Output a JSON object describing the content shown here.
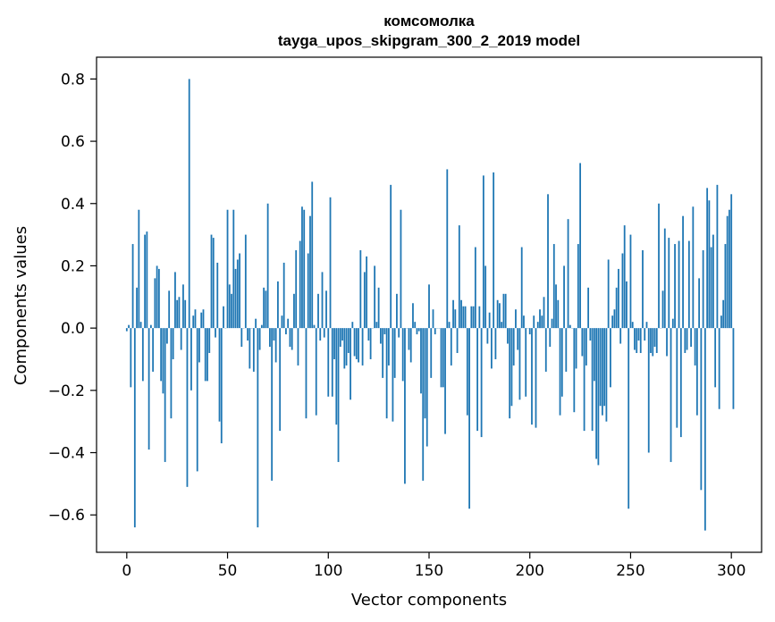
{
  "chart_data": {
    "type": "bar",
    "title": "комсомолка",
    "subtitle": "tayga_upos_skipgram_300_2_2019 model",
    "xlabel": "Vector components",
    "ylabel": "Components values",
    "xlim": [
      -15,
      315
    ],
    "ylim": [
      -0.72,
      0.87
    ],
    "xticks": [
      0,
      50,
      100,
      150,
      200,
      250,
      300
    ],
    "xtick_labels": [
      "0",
      "50",
      "100",
      "150",
      "200",
      "250",
      "300"
    ],
    "yticks": [
      -0.6,
      -0.4,
      -0.2,
      0.0,
      0.2,
      0.4,
      0.6,
      0.8
    ],
    "ytick_labels": [
      "−0.6",
      "−0.4",
      "−0.2",
      "0.0",
      "0.2",
      "0.4",
      "0.6",
      "0.8"
    ],
    "grid": false,
    "color": "#1f77b4",
    "series": [
      {
        "values": [
          -0.01,
          0.01,
          -0.19,
          0.27,
          -0.64,
          0.13,
          0.38,
          0.02,
          -0.17,
          0.3,
          0.31,
          -0.39,
          0.01,
          -0.14,
          0.16,
          0.2,
          0.19,
          -0.17,
          -0.21,
          -0.43,
          -0.05,
          0.12,
          -0.29,
          -0.1,
          0.18,
          0.09,
          0.1,
          -0.07,
          0.14,
          0.09,
          -0.51,
          0.8,
          -0.2,
          0.04,
          0.06,
          -0.46,
          -0.11,
          0.05,
          0.06,
          -0.17,
          -0.17,
          -0.08,
          0.3,
          0.29,
          -0.03,
          0.21,
          -0.3,
          -0.37,
          0.07,
          0.0,
          0.38,
          0.14,
          0.11,
          0.38,
          0.19,
          0.22,
          0.24,
          -0.06,
          0.0,
          0.3,
          -0.04,
          -0.13,
          0.0,
          -0.14,
          0.03,
          -0.64,
          -0.07,
          0.01,
          0.13,
          0.12,
          0.4,
          -0.06,
          -0.49,
          -0.04,
          -0.11,
          0.15,
          -0.33,
          0.04,
          0.21,
          -0.02,
          0.03,
          -0.06,
          -0.07,
          0.11,
          0.25,
          -0.12,
          0.28,
          0.39,
          0.38,
          -0.29,
          0.24,
          0.36,
          0.47,
          0.01,
          -0.28,
          0.11,
          -0.04,
          0.18,
          -0.03,
          0.12,
          -0.22,
          0.42,
          -0.22,
          -0.1,
          -0.31,
          -0.43,
          -0.06,
          -0.04,
          -0.13,
          -0.12,
          -0.08,
          -0.23,
          0.02,
          -0.09,
          -0.1,
          -0.11,
          0.25,
          -0.12,
          0.18,
          0.23,
          -0.04,
          -0.1,
          0.0,
          0.2,
          0.02,
          0.13,
          -0.05,
          -0.16,
          -0.02,
          -0.29,
          -0.12,
          0.46,
          -0.3,
          -0.16,
          0.11,
          -0.03,
          0.38,
          -0.17,
          -0.5,
          0.0,
          -0.07,
          -0.11,
          0.08,
          0.02,
          -0.02,
          -0.01,
          -0.21,
          -0.49,
          -0.29,
          -0.38,
          0.14,
          -0.16,
          0.06,
          -0.02,
          0.0,
          0.0,
          -0.19,
          -0.19,
          -0.34,
          0.51,
          0.02,
          -0.12,
          0.09,
          0.06,
          -0.08,
          0.33,
          0.09,
          0.07,
          0.07,
          -0.28,
          -0.58,
          0.07,
          0.07,
          0.26,
          -0.33,
          0.07,
          -0.35,
          0.49,
          0.2,
          -0.05,
          0.05,
          -0.13,
          0.5,
          -0.1,
          0.09,
          0.08,
          0.02,
          0.11,
          0.11,
          -0.05,
          -0.29,
          -0.25,
          -0.12,
          0.06,
          -0.07,
          -0.23,
          0.26,
          0.04,
          -0.22,
          0.0,
          -0.02,
          -0.31,
          0.04,
          -0.32,
          0.02,
          0.06,
          0.04,
          0.1,
          -0.14,
          0.43,
          -0.06,
          0.03,
          0.27,
          0.14,
          0.09,
          -0.28,
          -0.22,
          0.2,
          -0.14,
          0.35,
          0.01,
          0.0,
          -0.27,
          -0.13,
          0.27,
          0.53,
          -0.09,
          -0.33,
          -0.12,
          0.13,
          -0.04,
          -0.33,
          -0.17,
          -0.42,
          -0.44,
          -0.25,
          -0.28,
          -0.25,
          -0.3,
          0.22,
          -0.19,
          0.04,
          0.06,
          0.13,
          0.19,
          -0.05,
          0.24,
          0.33,
          0.15,
          -0.58,
          0.3,
          0.02,
          -0.07,
          -0.08,
          -0.04,
          -0.08,
          0.25,
          -0.04,
          0.02,
          -0.4,
          -0.08,
          -0.09,
          -0.06,
          -0.08,
          0.4,
          0.0,
          0.12,
          0.32,
          -0.09,
          0.29,
          -0.43,
          0.03,
          0.27,
          -0.32,
          0.28,
          -0.35,
          0.36,
          -0.08,
          -0.07,
          0.28,
          -0.06,
          0.39,
          -0.12,
          -0.28,
          0.16,
          -0.52,
          0.25,
          -0.65,
          0.45,
          0.41,
          0.26,
          0.3,
          -0.19,
          0.46,
          -0.26,
          0.04,
          0.09,
          0.27,
          0.36,
          0.38,
          0.43,
          -0.26
        ]
      }
    ]
  }
}
